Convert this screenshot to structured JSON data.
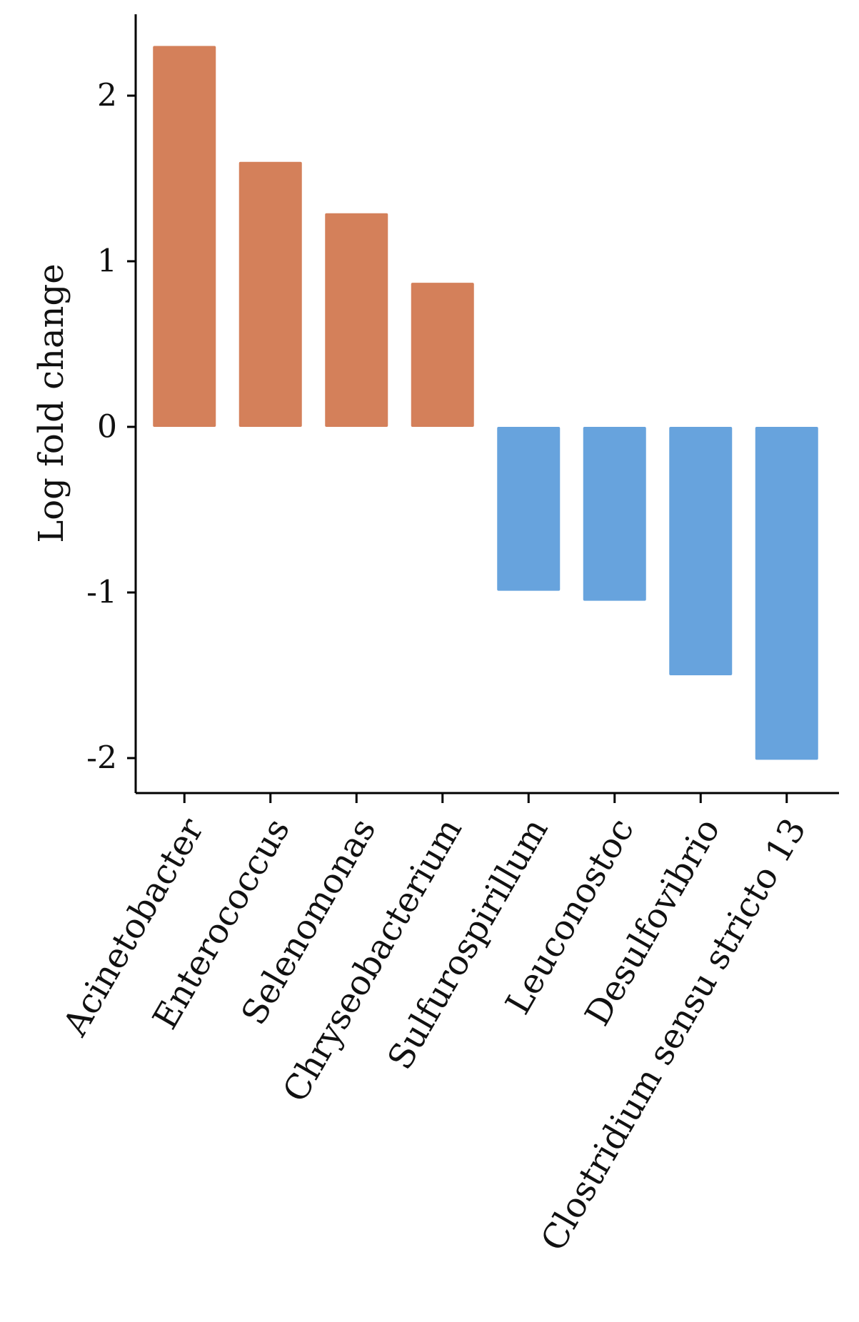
{
  "chart_data": {
    "type": "bar",
    "title": "",
    "xlabel": "",
    "ylabel": "Log fold change",
    "ylim": [
      -2.2,
      2.5
    ],
    "yticks": [
      2,
      1,
      0,
      -1,
      -2
    ],
    "ytick_labels": [
      "2",
      "1",
      "0",
      "-1",
      "-2"
    ],
    "categories": [
      "Acinetobacter",
      "Enterococcus",
      "Selenomonas",
      "Chryseobacterium",
      "Sulfurospirillum",
      "Leuconostoc",
      "Desulfovibrio",
      "Clostridium sensu stricto 13"
    ],
    "values": [
      2.3,
      1.6,
      1.29,
      0.87,
      -0.99,
      -1.05,
      -1.5,
      -2.01
    ],
    "colors": {
      "positive": "#D4805A",
      "negative": "#67A3DD"
    },
    "grid": false,
    "legend": "none"
  }
}
